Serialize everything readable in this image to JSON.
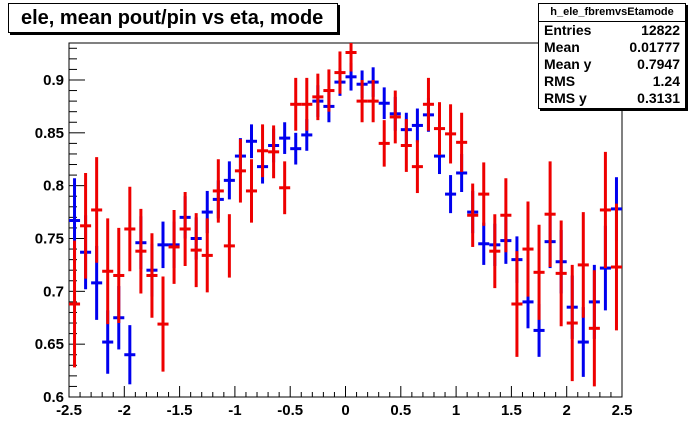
{
  "title": "ele, mean pout/pin vs eta, mode",
  "stats": {
    "name": "h_ele_fbremvsEtamode",
    "rows": [
      {
        "label": "Entries",
        "value": "12822"
      },
      {
        "label": "Mean",
        "value": "0.01777"
      },
      {
        "label": "Mean y",
        "value": "0.7947"
      },
      {
        "label": "RMS",
        "value": "1.24"
      },
      {
        "label": "RMS y",
        "value": "0.3131"
      }
    ]
  },
  "chart_data": {
    "type": "scatter",
    "title": "ele, mean pout/pin vs eta, mode",
    "xlabel": "",
    "ylabel": "",
    "xlim": [
      -2.5,
      2.5
    ],
    "ylim": [
      0.6,
      0.935
    ],
    "x_ticks": [
      -2.5,
      -2,
      -1.5,
      -1,
      -0.5,
      0,
      0.5,
      1,
      1.5,
      2,
      2.5
    ],
    "x_tick_labels": [
      "-2.5",
      "-2",
      "-1.5",
      "-1",
      "-0.5",
      "0",
      "0.5",
      "1",
      "1.5",
      "2",
      "2.5"
    ],
    "y_ticks": [
      0.6,
      0.65,
      0.7,
      0.75,
      0.8,
      0.85,
      0.9
    ],
    "y_tick_labels": [
      "0.6",
      "0.65",
      "0.7",
      "0.75",
      "0.8",
      "0.85",
      "0.9"
    ],
    "bin_half_width": 0.05,
    "grid": false,
    "series": [
      {
        "color": "#0000ee",
        "points": [
          {
            "x": -2.45,
            "y": 0.767,
            "err": 0.04
          },
          {
            "x": -2.35,
            "y": 0.737,
            "err": 0.035
          },
          {
            "x": -2.25,
            "y": 0.708,
            "err": 0.035
          },
          {
            "x": -2.15,
            "y": 0.652,
            "err": 0.03
          },
          {
            "x": -2.05,
            "y": 0.675,
            "err": 0.03
          },
          {
            "x": -1.95,
            "y": 0.64,
            "err": 0.028
          },
          {
            "x": -1.85,
            "y": 0.746,
            "err": 0.025
          },
          {
            "x": -1.75,
            "y": 0.72,
            "err": 0.025
          },
          {
            "x": -1.65,
            "y": 0.744,
            "err": 0.022
          },
          {
            "x": -1.55,
            "y": 0.744,
            "err": 0.022
          },
          {
            "x": -1.45,
            "y": 0.77,
            "err": 0.02
          },
          {
            "x": -1.35,
            "y": 0.75,
            "err": 0.02
          },
          {
            "x": -1.25,
            "y": 0.775,
            "err": 0.02
          },
          {
            "x": -1.15,
            "y": 0.787,
            "err": 0.018
          },
          {
            "x": -1.05,
            "y": 0.805,
            "err": 0.018
          },
          {
            "x": -0.95,
            "y": 0.828,
            "err": 0.017
          },
          {
            "x": -0.85,
            "y": 0.842,
            "err": 0.016
          },
          {
            "x": -0.75,
            "y": 0.818,
            "err": 0.016
          },
          {
            "x": -0.65,
            "y": 0.838,
            "err": 0.016
          },
          {
            "x": -0.55,
            "y": 0.845,
            "err": 0.015
          },
          {
            "x": -0.45,
            "y": 0.835,
            "err": 0.015
          },
          {
            "x": -0.35,
            "y": 0.848,
            "err": 0.015
          },
          {
            "x": -0.25,
            "y": 0.88,
            "err": 0.015
          },
          {
            "x": -0.15,
            "y": 0.875,
            "err": 0.015
          },
          {
            "x": -0.05,
            "y": 0.898,
            "err": 0.013
          },
          {
            "x": 0.05,
            "y": 0.903,
            "err": 0.013
          },
          {
            "x": 0.15,
            "y": 0.896,
            "err": 0.013
          },
          {
            "x": 0.25,
            "y": 0.898,
            "err": 0.014
          },
          {
            "x": 0.35,
            "y": 0.878,
            "err": 0.015
          },
          {
            "x": 0.45,
            "y": 0.868,
            "err": 0.016
          },
          {
            "x": 0.55,
            "y": 0.853,
            "err": 0.016
          },
          {
            "x": 0.65,
            "y": 0.857,
            "err": 0.016
          },
          {
            "x": 0.75,
            "y": 0.867,
            "err": 0.016
          },
          {
            "x": 0.85,
            "y": 0.828,
            "err": 0.017
          },
          {
            "x": 0.95,
            "y": 0.792,
            "err": 0.018
          },
          {
            "x": 1.05,
            "y": 0.812,
            "err": 0.018
          },
          {
            "x": 1.15,
            "y": 0.775,
            "err": 0.02
          },
          {
            "x": 1.25,
            "y": 0.745,
            "err": 0.02
          },
          {
            "x": 1.35,
            "y": 0.744,
            "err": 0.02
          },
          {
            "x": 1.45,
            "y": 0.748,
            "err": 0.022
          },
          {
            "x": 1.55,
            "y": 0.73,
            "err": 0.022
          },
          {
            "x": 1.65,
            "y": 0.69,
            "err": 0.025
          },
          {
            "x": 1.75,
            "y": 0.663,
            "err": 0.025
          },
          {
            "x": 1.85,
            "y": 0.747,
            "err": 0.025
          },
          {
            "x": 1.95,
            "y": 0.728,
            "err": 0.03
          },
          {
            "x": 2.05,
            "y": 0.685,
            "err": 0.03
          },
          {
            "x": 2.15,
            "y": 0.652,
            "err": 0.033
          },
          {
            "x": 2.25,
            "y": 0.69,
            "err": 0.035
          },
          {
            "x": 2.35,
            "y": 0.722,
            "err": 0.04
          },
          {
            "x": 2.45,
            "y": 0.778,
            "err": 0.03
          }
        ]
      },
      {
        "color": "#ee0000",
        "points": [
          {
            "x": -2.45,
            "y": 0.688,
            "err": 0.06
          },
          {
            "x": -2.35,
            "y": 0.762,
            "err": 0.05
          },
          {
            "x": -2.25,
            "y": 0.777,
            "err": 0.05
          },
          {
            "x": -2.15,
            "y": 0.719,
            "err": 0.05
          },
          {
            "x": -2.05,
            "y": 0.715,
            "err": 0.045
          },
          {
            "x": -1.95,
            "y": 0.759,
            "err": 0.04
          },
          {
            "x": -1.85,
            "y": 0.738,
            "err": 0.04
          },
          {
            "x": -1.75,
            "y": 0.715,
            "err": 0.04
          },
          {
            "x": -1.65,
            "y": 0.669,
            "err": 0.045
          },
          {
            "x": -1.55,
            "y": 0.742,
            "err": 0.035
          },
          {
            "x": -1.45,
            "y": 0.759,
            "err": 0.035
          },
          {
            "x": -1.35,
            "y": 0.739,
            "err": 0.035
          },
          {
            "x": -1.25,
            "y": 0.734,
            "err": 0.035
          },
          {
            "x": -1.15,
            "y": 0.795,
            "err": 0.03
          },
          {
            "x": -1.05,
            "y": 0.743,
            "err": 0.03
          },
          {
            "x": -0.95,
            "y": 0.814,
            "err": 0.03
          },
          {
            "x": -0.85,
            "y": 0.795,
            "err": 0.03
          },
          {
            "x": -0.75,
            "y": 0.833,
            "err": 0.025
          },
          {
            "x": -0.65,
            "y": 0.832,
            "err": 0.025
          },
          {
            "x": -0.55,
            "y": 0.798,
            "err": 0.025
          },
          {
            "x": -0.45,
            "y": 0.877,
            "err": 0.025
          },
          {
            "x": -0.35,
            "y": 0.877,
            "err": 0.025
          },
          {
            "x": -0.25,
            "y": 0.884,
            "err": 0.022
          },
          {
            "x": -0.15,
            "y": 0.89,
            "err": 0.02
          },
          {
            "x": -0.05,
            "y": 0.907,
            "err": 0.02
          },
          {
            "x": 0.05,
            "y": 0.926,
            "err": 0.018
          },
          {
            "x": 0.15,
            "y": 0.88,
            "err": 0.02
          },
          {
            "x": 0.25,
            "y": 0.88,
            "err": 0.02
          },
          {
            "x": 0.35,
            "y": 0.84,
            "err": 0.022
          },
          {
            "x": 0.45,
            "y": 0.865,
            "err": 0.025
          },
          {
            "x": 0.55,
            "y": 0.838,
            "err": 0.025
          },
          {
            "x": 0.65,
            "y": 0.818,
            "err": 0.025
          },
          {
            "x": 0.75,
            "y": 0.877,
            "err": 0.025
          },
          {
            "x": 0.85,
            "y": 0.854,
            "err": 0.025
          },
          {
            "x": 0.95,
            "y": 0.849,
            "err": 0.028
          },
          {
            "x": 1.05,
            "y": 0.841,
            "err": 0.028
          },
          {
            "x": 1.15,
            "y": 0.772,
            "err": 0.03
          },
          {
            "x": 1.25,
            "y": 0.792,
            "err": 0.03
          },
          {
            "x": 1.35,
            "y": 0.738,
            "err": 0.035
          },
          {
            "x": 1.45,
            "y": 0.772,
            "err": 0.035
          },
          {
            "x": 1.55,
            "y": 0.688,
            "err": 0.05
          },
          {
            "x": 1.65,
            "y": 0.74,
            "err": 0.045
          },
          {
            "x": 1.75,
            "y": 0.718,
            "err": 0.045
          },
          {
            "x": 1.85,
            "y": 0.773,
            "err": 0.05
          },
          {
            "x": 1.95,
            "y": 0.717,
            "err": 0.05
          },
          {
            "x": 2.05,
            "y": 0.67,
            "err": 0.055
          },
          {
            "x": 2.15,
            "y": 0.725,
            "err": 0.05
          },
          {
            "x": 2.25,
            "y": 0.665,
            "err": 0.055
          },
          {
            "x": 2.35,
            "y": 0.777,
            "err": 0.055
          },
          {
            "x": 2.45,
            "y": 0.723,
            "err": 0.06
          }
        ]
      }
    ]
  }
}
